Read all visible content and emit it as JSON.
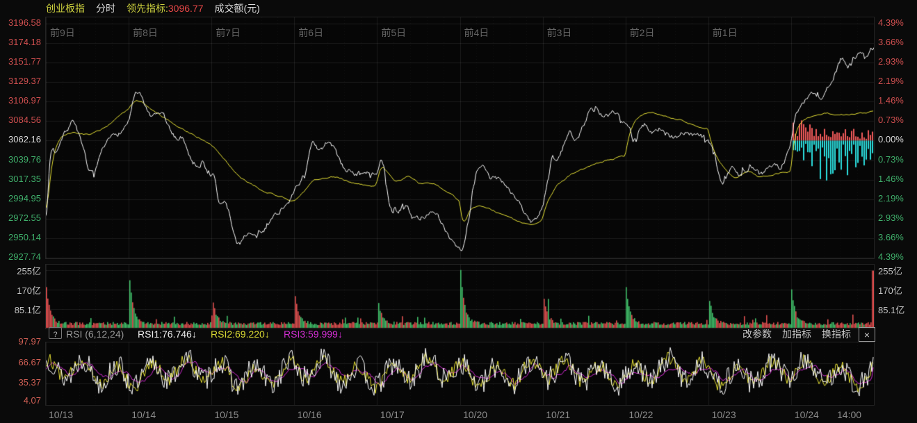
{
  "header": {
    "symbol": "创业板指",
    "mode": "分时",
    "leading_label": "领先指标:",
    "leading_value": "3096.77",
    "amount_label": "成交额(元)"
  },
  "price_axis_left": [
    {
      "text": "3196.58",
      "tone": "r"
    },
    {
      "text": "3174.18",
      "tone": "r"
    },
    {
      "text": "3151.77",
      "tone": "r"
    },
    {
      "text": "3129.37",
      "tone": "r"
    },
    {
      "text": "3106.97",
      "tone": "r"
    },
    {
      "text": "3084.56",
      "tone": "r"
    },
    {
      "text": "3062.16",
      "tone": "w"
    },
    {
      "text": "3039.76",
      "tone": "g"
    },
    {
      "text": "3017.35",
      "tone": "g"
    },
    {
      "text": "2994.95",
      "tone": "g"
    },
    {
      "text": "2972.55",
      "tone": "g"
    },
    {
      "text": "2950.14",
      "tone": "g"
    },
    {
      "text": "2927.74",
      "tone": "g"
    }
  ],
  "pct_axis_right": [
    {
      "text": "4.39%",
      "tone": "r"
    },
    {
      "text": "3.66%",
      "tone": "r"
    },
    {
      "text": "2.93%",
      "tone": "r"
    },
    {
      "text": "2.19%",
      "tone": "r"
    },
    {
      "text": "1.46%",
      "tone": "r"
    },
    {
      "text": "0.73%",
      "tone": "r"
    },
    {
      "text": "0.00%",
      "tone": "w"
    },
    {
      "text": "0.73%",
      "tone": "g"
    },
    {
      "text": "1.46%",
      "tone": "g"
    },
    {
      "text": "2.19%",
      "tone": "g"
    },
    {
      "text": "2.93%",
      "tone": "g"
    },
    {
      "text": "3.66%",
      "tone": "g"
    },
    {
      "text": "4.39%",
      "tone": "g"
    }
  ],
  "day_markers": [
    "前9日",
    "前8日",
    "前7日",
    "前6日",
    "前5日",
    "前4日",
    "前3日",
    "前2日",
    "前1日"
  ],
  "volume_axis": [
    "255亿",
    "170亿",
    "85.1亿"
  ],
  "rsi_axis": [
    "97.97",
    "66.67",
    "35.37",
    "4.07"
  ],
  "x_labels": [
    "10/13",
    "10/14",
    "10/15",
    "10/16",
    "10/17",
    "10/20",
    "10/21",
    "10/22",
    "10/23",
    "10/24"
  ],
  "x_time_label": "14:00",
  "rsi_toolbar": {
    "help": "?",
    "indicator_name": "RSI (6,12,24)",
    "rsi1": "RSI1:76.746↓",
    "rsi2": "RSI2:69.220↓",
    "rsi3": "RSI3:59.999↓",
    "buttons": {
      "edit_params": "改参数",
      "add_indicator": "加指标",
      "switch_indicator": "换指标"
    },
    "close": "×"
  },
  "chart_data": {
    "type": "line",
    "title": "创业板指 分时 (10-day minute chart)",
    "price_range": [
      2927.74,
      3196.58
    ],
    "pct_range": [
      -4.39,
      4.39
    ],
    "prev_close": 3062.16,
    "leading_indicator_value": 3096.77,
    "volume_scale_yi": [
      255,
      170,
      85.1
    ],
    "rsi_scale": [
      97.97,
      66.67,
      35.37,
      4.07
    ],
    "rsi_current": [
      76.746,
      69.22,
      59.999
    ],
    "days": [
      "10/13",
      "10/14",
      "10/15",
      "10/16",
      "10/17",
      "10/20",
      "10/21",
      "10/22",
      "10/23",
      "10/24"
    ],
    "price_anchors": [
      [
        0.0,
        2976
      ],
      [
        0.04,
        3096
      ],
      [
        0.1,
        3043
      ],
      [
        0.16,
        3073
      ],
      [
        0.33,
        3089
      ],
      [
        0.42,
        3045
      ],
      [
        0.52,
        3015
      ],
      [
        0.68,
        3055
      ],
      [
        0.8,
        3070
      ],
      [
        0.92,
        3077
      ],
      [
        1.0,
        3092
      ],
      [
        1.05,
        3125
      ],
      [
        1.17,
        3101
      ],
      [
        1.25,
        3082
      ],
      [
        1.39,
        3096
      ],
      [
        1.5,
        3062
      ],
      [
        1.64,
        3067
      ],
      [
        1.76,
        3031
      ],
      [
        1.88,
        3039
      ],
      [
        1.97,
        3015
      ],
      [
        2.02,
        3023
      ],
      [
        2.07,
        2973
      ],
      [
        2.15,
        2994
      ],
      [
        2.29,
        2933
      ],
      [
        2.4,
        2962
      ],
      [
        2.52,
        2946
      ],
      [
        2.7,
        2973
      ],
      [
        2.85,
        2990
      ],
      [
        2.97,
        3002
      ],
      [
        3.1,
        3028
      ],
      [
        3.17,
        3055
      ],
      [
        3.2,
        3067
      ],
      [
        3.28,
        3042
      ],
      [
        3.4,
        3067
      ],
      [
        3.55,
        3028
      ],
      [
        3.75,
        3025
      ],
      [
        3.97,
        3023
      ],
      [
        4.04,
        3045
      ],
      [
        4.15,
        2967
      ],
      [
        4.32,
        2994
      ],
      [
        4.43,
        2967
      ],
      [
        4.6,
        2983
      ],
      [
        4.8,
        2957
      ],
      [
        4.99,
        2936
      ],
      [
        5.02,
        2940
      ],
      [
        5.18,
        3039
      ],
      [
        5.35,
        3018
      ],
      [
        5.52,
        3015
      ],
      [
        5.8,
        2970
      ],
      [
        5.86,
        2962
      ],
      [
        5.99,
        2994
      ],
      [
        6.1,
        3055
      ],
      [
        6.15,
        3031
      ],
      [
        6.3,
        3081
      ],
      [
        6.37,
        3063
      ],
      [
        6.55,
        3102
      ],
      [
        6.62,
        3093
      ],
      [
        6.72,
        3087
      ],
      [
        6.86,
        3095
      ],
      [
        6.99,
        3085
      ],
      [
        7.03,
        3083
      ],
      [
        7.08,
        3047
      ],
      [
        7.17,
        3092
      ],
      [
        7.27,
        3069
      ],
      [
        7.41,
        3079
      ],
      [
        7.5,
        3061
      ],
      [
        7.66,
        3073
      ],
      [
        7.99,
        3062
      ],
      [
        8.03,
        3051
      ],
      [
        8.06,
        3031
      ],
      [
        8.15,
        3004
      ],
      [
        8.28,
        3041
      ],
      [
        8.33,
        3017
      ],
      [
        8.5,
        3039
      ],
      [
        8.6,
        3019
      ],
      [
        8.75,
        3040
      ],
      [
        8.85,
        3029
      ],
      [
        8.98,
        3062
      ],
      [
        9.04,
        3110
      ],
      [
        9.1,
        3100
      ],
      [
        9.23,
        3126
      ],
      [
        9.32,
        3102
      ],
      [
        9.4,
        3118
      ],
      [
        9.6,
        3163
      ],
      [
        9.68,
        3145
      ],
      [
        9.75,
        3155
      ],
      [
        9.9,
        3167
      ],
      [
        10.0,
        3174
      ]
    ],
    "avg_anchors": [
      [
        0.0,
        2985
      ],
      [
        0.06,
        3060
      ],
      [
        0.15,
        3070
      ],
      [
        0.3,
        3072
      ],
      [
        0.5,
        3068
      ],
      [
        0.7,
        3078
      ],
      [
        0.85,
        3090
      ],
      [
        1.0,
        3102
      ],
      [
        1.02,
        3108
      ],
      [
        1.1,
        3110
      ],
      [
        1.25,
        3096
      ],
      [
        1.5,
        3082
      ],
      [
        1.75,
        3068
      ],
      [
        1.97,
        3057
      ],
      [
        2.02,
        3052
      ],
      [
        2.2,
        3031
      ],
      [
        2.35,
        3016
      ],
      [
        2.6,
        3004
      ],
      [
        2.97,
        2992
      ],
      [
        3.05,
        3000
      ],
      [
        3.2,
        3018
      ],
      [
        3.45,
        3021
      ],
      [
        3.6,
        3015
      ],
      [
        3.8,
        3011
      ],
      [
        3.97,
        3009
      ],
      [
        4.03,
        3044
      ],
      [
        4.1,
        3024
      ],
      [
        4.2,
        3014
      ],
      [
        4.35,
        3022
      ],
      [
        4.5,
        3011
      ],
      [
        4.65,
        3014
      ],
      [
        4.85,
        3001
      ],
      [
        4.99,
        2990
      ],
      [
        5.02,
        2950
      ],
      [
        5.1,
        2990
      ],
      [
        5.3,
        2985
      ],
      [
        5.5,
        2975
      ],
      [
        5.7,
        2968
      ],
      [
        5.85,
        2963
      ],
      [
        5.99,
        2975
      ],
      [
        6.02,
        2995
      ],
      [
        6.15,
        3013
      ],
      [
        6.3,
        3024
      ],
      [
        6.45,
        3030
      ],
      [
        6.6,
        3036
      ],
      [
        6.75,
        3040
      ],
      [
        6.99,
        3045
      ],
      [
        7.02,
        3079
      ],
      [
        7.1,
        3090
      ],
      [
        7.25,
        3096
      ],
      [
        7.4,
        3091
      ],
      [
        7.55,
        3088
      ],
      [
        7.7,
        3084
      ],
      [
        7.85,
        3077
      ],
      [
        7.99,
        3076
      ],
      [
        8.02,
        3049
      ],
      [
        8.15,
        3030
      ],
      [
        8.3,
        3017
      ],
      [
        8.45,
        3029
      ],
      [
        8.6,
        3019
      ],
      [
        8.8,
        3025
      ],
      [
        8.99,
        3027
      ],
      [
        9.02,
        3085
      ],
      [
        9.2,
        3090
      ],
      [
        9.4,
        3094
      ],
      [
        9.6,
        3092
      ],
      [
        9.8,
        3093
      ],
      [
        10.0,
        3096.77
      ]
    ],
    "leading_histogram": {
      "day": 9,
      "red_envelope_pct": [
        [
          9.02,
          1.0
        ],
        [
          9.15,
          0.8
        ],
        [
          9.3,
          0.55
        ],
        [
          9.5,
          0.5
        ],
        [
          9.7,
          0.45
        ],
        [
          10.0,
          0.4
        ]
      ],
      "cyan_envelope_pct": [
        [
          9.02,
          0.45
        ],
        [
          9.2,
          1.2
        ],
        [
          9.4,
          1.55
        ],
        [
          9.55,
          1.3
        ],
        [
          9.7,
          1.5
        ],
        [
          9.85,
          1.05
        ],
        [
          10.0,
          0.7
        ]
      ]
    },
    "volume_days": [
      {
        "date": "10/13",
        "open_spike_yi": 160,
        "spike_color": "red"
      },
      {
        "date": "10/14",
        "open_spike_yi": 220,
        "spike_color": "green"
      },
      {
        "date": "10/15",
        "open_spike_yi": 130,
        "spike_color": "red"
      },
      {
        "date": "10/16",
        "open_spike_yi": 135,
        "spike_color": "red"
      },
      {
        "date": "10/17",
        "open_spike_yi": 115,
        "spike_color": "green"
      },
      {
        "date": "10/20",
        "open_spike_yi": 250,
        "spike_color": "green"
      },
      {
        "date": "10/21",
        "open_spike_yi": 140,
        "spike_color": "red"
      },
      {
        "date": "10/22",
        "open_spike_yi": 165,
        "spike_color": "green"
      },
      {
        "date": "10/23",
        "open_spike_yi": 130,
        "spike_color": "green"
      },
      {
        "date": "10/24",
        "open_spike_yi": 150,
        "spike_color": "green"
      }
    ],
    "volume_close_spike": {
      "value_yi": 250,
      "color": "red"
    },
    "gen": {
      "seed_price": 7,
      "seed_vol": 21,
      "seed_rsi": 11,
      "seed_hist": 5
    },
    "colors": {
      "line_white": "#ffffff",
      "line_yellow": "#e6e135",
      "line_magenta": "#d42ad4",
      "bar_red": "#f05a5a",
      "bar_cyan": "#2bdcdc",
      "vol_red": "#df5050",
      "vol_green": "#42c06a",
      "grid": "rgba(255,255,255,0.09)",
      "subgrid": "rgba(255,255,255,0.055)",
      "axis_red": "#cf4f4f",
      "axis_green": "#3fae6a",
      "axis_white": "#dadada"
    }
  }
}
